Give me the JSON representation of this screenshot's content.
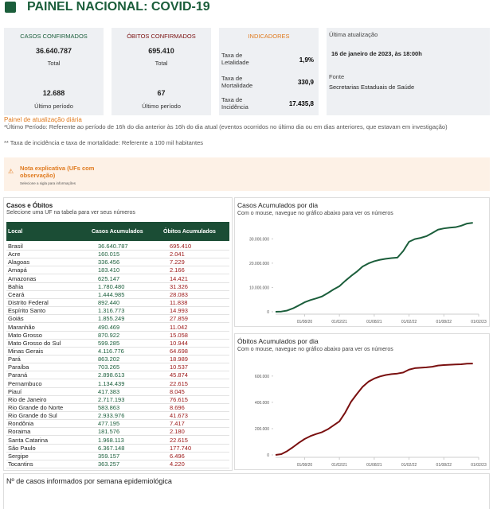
{
  "header": {
    "title": "PAINEL NACIONAL: COVID-19"
  },
  "cards": [
    {
      "title": "CASOS CONFIRMADOS",
      "total": "36.640.787",
      "total_label": "Total",
      "period": "12.688",
      "period_label": "Último período"
    },
    {
      "title": "ÓBITOS CONFIRMADOS",
      "total": "695.410",
      "total_label": "Total",
      "period": "67",
      "period_label": "Último período"
    }
  ],
  "indicators": {
    "title": "INDICADORES",
    "items": [
      {
        "label": "Taxa de Letalidade",
        "value": "1,9%"
      },
      {
        "label": "Taxa de Mortalidade",
        "value": "330,9"
      },
      {
        "label": "Taxa de Incidência",
        "value": "17.435,8"
      }
    ]
  },
  "update": {
    "title": "Última atualização",
    "date": "16 de janeiro de 2023, às 18:00h",
    "source_title": "Fonte",
    "source": "Secretarias Estaduais de Saúde"
  },
  "notes": {
    "title": "Painel de atualização diária",
    "lines": [
      "*Último Período: Referente ao período de 16h do dia anterior às 16h do dia atual (eventos ocorridos no último dia ou em dias anteriores, que estavam em investigação)",
      "** Taxa de incidência e taxa de mortalidade: Referente a 100 mil habitantes"
    ]
  },
  "note_box": {
    "title": "Nota explicativa (UFs com observação)",
    "subtitle": "Selecione a sigla para informações"
  },
  "table": {
    "title": "Casos e Óbitos",
    "subtitle": "Selecione uma UF na tabela para ver seus números",
    "columns": [
      "Local",
      "Casos Acumulados",
      "Óbitos Acumulados"
    ],
    "rows": [
      [
        "Brasil",
        "36.640.787",
        "695.410"
      ],
      [
        "Acre",
        "160.015",
        "2.041"
      ],
      [
        "Alagoas",
        "336.456",
        "7.229"
      ],
      [
        "Amapá",
        "183.410",
        "2.166"
      ],
      [
        "Amazonas",
        "625.147",
        "14.421"
      ],
      [
        "Bahia",
        "1.780.480",
        "31.326"
      ],
      [
        "Ceará",
        "1.444.985",
        "28.083"
      ],
      [
        "Distrito Federal",
        "892.440",
        "11.838"
      ],
      [
        "Espírito Santo",
        "1.316.773",
        "14.993"
      ],
      [
        "Goiás",
        "1.855.249",
        "27.859"
      ],
      [
        "Maranhão",
        "490.469",
        "11.042"
      ],
      [
        "Mato Grosso",
        "870.922",
        "15.058"
      ],
      [
        "Mato Grosso do Sul",
        "599.285",
        "10.944"
      ],
      [
        "Minas Gerais",
        "4.116.776",
        "64.698"
      ],
      [
        "Pará",
        "863.202",
        "18.989"
      ],
      [
        "Paraíba",
        "703.265",
        "10.537"
      ],
      [
        "Paraná",
        "2.898.613",
        "45.874"
      ],
      [
        "Pernambuco",
        "1.134.439",
        "22.615"
      ],
      [
        "Piauí",
        "417.383",
        "8.045"
      ],
      [
        "Rio de Janeiro",
        "2.717.193",
        "76.615"
      ],
      [
        "Rio Grande do Norte",
        "583.863",
        "8.696"
      ],
      [
        "Rio Grande do Sul",
        "2.933.976",
        "41.673"
      ],
      [
        "Rondônia",
        "477.195",
        "7.417"
      ],
      [
        "Roraima",
        "181.576",
        "2.180"
      ],
      [
        "Santa Catarina",
        "1.968.113",
        "22.615"
      ],
      [
        "São Paulo",
        "6.367.148",
        "177.740"
      ],
      [
        "Sergipe",
        "359.157",
        "6.496"
      ],
      [
        "Tocantins",
        "363.257",
        "4.220"
      ]
    ]
  },
  "chart_data": [
    {
      "type": "line",
      "title": "Casos Acumulados por dia",
      "subtitle": "Com o mouse, navegue no gráfico abaixo para ver os números",
      "x": [
        "01/03/20",
        "01/04/20",
        "01/05/20",
        "01/06/20",
        "01/07/20",
        "01/08/20",
        "01/09/20",
        "01/10/20",
        "01/11/20",
        "01/12/20",
        "01/01/21",
        "01/02/21",
        "01/03/21",
        "01/04/21",
        "01/05/21",
        "01/06/21",
        "01/07/21",
        "01/08/21",
        "01/09/21",
        "01/10/21",
        "01/11/21",
        "01/12/21",
        "01/01/22",
        "01/02/22",
        "01/03/22",
        "01/04/22",
        "01/05/22",
        "01/06/22",
        "01/07/22",
        "01/08/22",
        "01/09/22",
        "01/10/22",
        "01/11/22",
        "01/12/22",
        "01/01/23"
      ],
      "series": [
        {
          "color": "#1b5e3b",
          "values": [
            0,
            100000,
            500000,
            1400000,
            2600000,
            3900000,
            4800000,
            5500000,
            6300000,
            7700000,
            9200000,
            10500000,
            12700000,
            14700000,
            16500000,
            18600000,
            19900000,
            20800000,
            21400000,
            21800000,
            22100000,
            22300000,
            25000000,
            28800000,
            29900000,
            30400000,
            31100000,
            32400000,
            33800000,
            34300000,
            34600000,
            34800000,
            35400000,
            36300000,
            36600000
          ]
        }
      ],
      "xlim": [
        "01/03/20",
        "01/02/23"
      ],
      "xticks": [
        "01/08/20",
        "01/02/21",
        "01/08/21",
        "01/02/22",
        "01/08/22",
        "01/02/23"
      ],
      "ylim": [
        0,
        36000000
      ],
      "yticks": [
        0,
        {
          "value": 10000000,
          "label": "10.000.000"
        },
        {
          "value": 20000000,
          "label": "20.000.000"
        },
        {
          "value": 30000000,
          "label": "30.000.000"
        }
      ]
    },
    {
      "type": "line",
      "title": "Óbitos Acumulados por dia",
      "subtitle": "Com o mouse, navegue no gráfico abaixo para ver os números",
      "x": [
        "01/03/20",
        "01/04/20",
        "01/05/20",
        "01/06/20",
        "01/07/20",
        "01/08/20",
        "01/09/20",
        "01/10/20",
        "01/11/20",
        "01/12/20",
        "01/01/21",
        "01/02/21",
        "01/03/21",
        "01/04/21",
        "01/05/21",
        "01/06/21",
        "01/07/21",
        "01/08/21",
        "01/09/21",
        "01/10/21",
        "01/11/21",
        "01/12/21",
        "01/01/22",
        "01/02/22",
        "01/03/22",
        "01/04/22",
        "01/05/22",
        "01/06/22",
        "01/07/22",
        "01/08/22",
        "01/09/22",
        "01/10/22",
        "01/11/22",
        "01/12/22",
        "01/01/23"
      ],
      "series": [
        {
          "color": "#7a1010",
          "values": [
            0,
            6000,
            29000,
            59000,
            92000,
            121000,
            143000,
            159000,
            173000,
            195000,
            225000,
            255000,
            322000,
            404000,
            463000,
            518000,
            557000,
            581000,
            597000,
            608000,
            615000,
            619000,
            627000,
            649000,
            660000,
            663000,
            666000,
            671000,
            680000,
            684000,
            686000,
            688000,
            690000,
            694000,
            695000
          ]
        }
      ],
      "xlim": [
        "01/03/20",
        "01/02/23"
      ],
      "xticks": [
        "01/08/20",
        "01/02/21",
        "01/08/21",
        "01/02/22",
        "01/08/22",
        "01/02/23"
      ],
      "ylim": [
        0,
        720000
      ],
      "yticks": [
        0,
        {
          "value": 200000,
          "label": "200.000"
        },
        {
          "value": 400000,
          "label": "400.000"
        },
        {
          "value": 600000,
          "label": "600.000"
        }
      ]
    },
    {
      "type": "bar",
      "title": "Nº de casos informados por semana epidemiológica"
    }
  ]
}
